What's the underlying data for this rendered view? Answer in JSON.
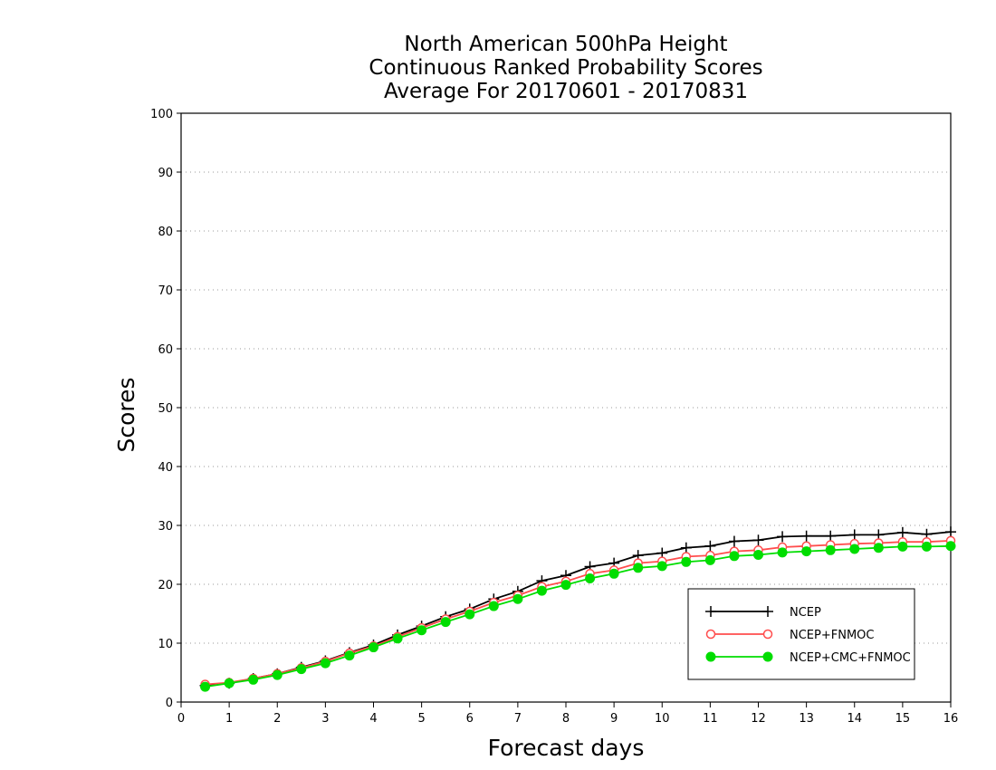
{
  "chart_data": {
    "type": "line",
    "title": [
      "North American 500hPa Height",
      "Continuous Ranked Probability Scores",
      "Average For 20170601 - 20170831"
    ],
    "xlabel": "Forecast days",
    "ylabel": "Scores",
    "xlim": [
      0,
      16
    ],
    "ylim": [
      0,
      100
    ],
    "xticks": [
      0,
      1,
      2,
      3,
      4,
      5,
      6,
      7,
      8,
      9,
      10,
      11,
      12,
      13,
      14,
      15,
      16
    ],
    "yticks": [
      0,
      10,
      20,
      30,
      40,
      50,
      60,
      70,
      80,
      90,
      100
    ],
    "grid": "horizontal-dotted",
    "legend_position": "bottom-right",
    "x": [
      0.5,
      1,
      1.5,
      2,
      2.5,
      3,
      3.5,
      4,
      4.5,
      5,
      5.5,
      6,
      6.5,
      7,
      7.5,
      8,
      8.5,
      9,
      9.5,
      10,
      10.5,
      11,
      11.5,
      12,
      12.5,
      13,
      13.5,
      14,
      14.5,
      15,
      15.5,
      16
    ],
    "series": [
      {
        "name": "NCEP",
        "color": "#000000",
        "marker": "plus",
        "values": [
          2.8,
          3.2,
          4.0,
          4.8,
          5.9,
          7.0,
          8.4,
          9.7,
          11.4,
          12.9,
          14.5,
          15.8,
          17.5,
          18.8,
          20.6,
          21.5,
          23.0,
          23.6,
          24.9,
          25.3,
          26.2,
          26.5,
          27.3,
          27.5,
          28.1,
          28.2,
          28.2,
          28.4,
          28.4,
          28.8,
          28.5,
          28.9
        ]
      },
      {
        "name": "NCEP+FNMOC",
        "color": "#ff4d4d",
        "marker": "open-circle",
        "values": [
          3.0,
          3.3,
          4.0,
          4.8,
          5.8,
          6.9,
          8.3,
          9.5,
          11.1,
          12.6,
          14.1,
          15.4,
          16.9,
          18.1,
          19.6,
          20.5,
          21.8,
          22.4,
          23.6,
          23.9,
          24.7,
          24.9,
          25.6,
          25.8,
          26.3,
          26.5,
          26.7,
          26.9,
          27.0,
          27.2,
          27.2,
          27.4
        ]
      },
      {
        "name": "NCEP+CMC+FNMOC",
        "color": "#00dd00",
        "marker": "filled-circle",
        "values": [
          2.6,
          3.2,
          3.8,
          4.6,
          5.6,
          6.6,
          7.9,
          9.3,
          10.8,
          12.2,
          13.6,
          14.9,
          16.3,
          17.5,
          18.9,
          19.9,
          21.0,
          21.8,
          22.8,
          23.1,
          23.8,
          24.1,
          24.8,
          25.0,
          25.4,
          25.6,
          25.8,
          26.0,
          26.2,
          26.4,
          26.4,
          26.5
        ]
      }
    ]
  }
}
